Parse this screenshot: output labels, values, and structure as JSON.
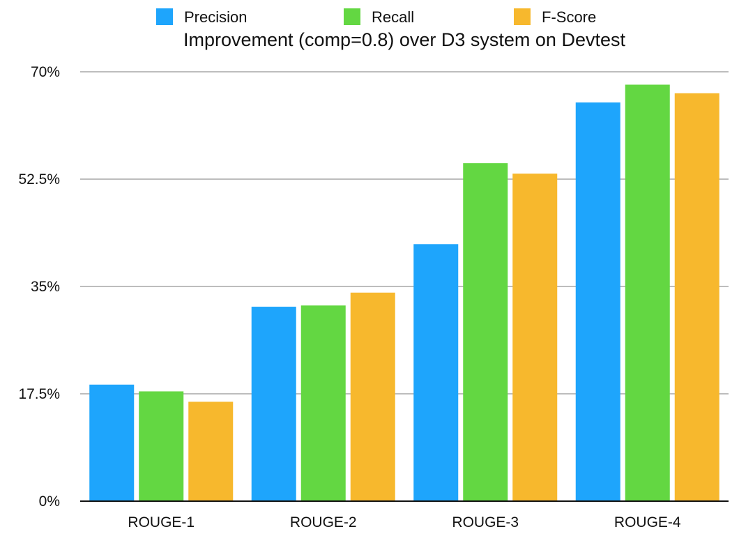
{
  "chart_data": {
    "type": "bar",
    "title": "Improvement (comp=0.8) over D3 system on Devtest",
    "xlabel": "",
    "ylabel": "",
    "categories": [
      "ROUGE-1",
      "ROUGE-2",
      "ROUGE-3",
      "ROUGE-4"
    ],
    "series": [
      {
        "name": "Precision",
        "color": "#1EA5FC",
        "values": [
          19.0,
          31.7,
          41.9,
          65.0
        ]
      },
      {
        "name": "Recall",
        "color": "#63D742",
        "values": [
          17.9,
          31.9,
          55.1,
          67.9
        ]
      },
      {
        "name": "F-Score",
        "color": "#F7B82D",
        "values": [
          16.2,
          34.0,
          53.4,
          66.5
        ]
      }
    ],
    "ylim": [
      0,
      70
    ],
    "yticks": [
      0,
      17.5,
      35,
      52.5,
      70
    ],
    "ytick_labels": [
      "0%",
      "17.5%",
      "35%",
      "52.5%",
      "70%"
    ],
    "grid": true,
    "legend_position": "top"
  }
}
